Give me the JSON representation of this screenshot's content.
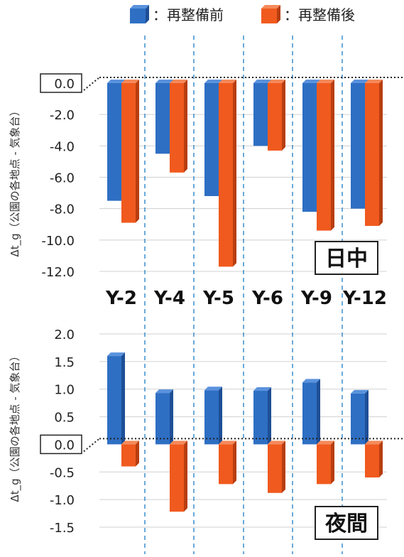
{
  "legend": {
    "before": {
      "label": "：再整備前",
      "color": "#2E6FC4",
      "dark": "#1E4F96",
      "light": "#5A92DD"
    },
    "after": {
      "label": "：再整備後",
      "color": "#F05A1E",
      "dark": "#B83E10",
      "light": "#F58A5A"
    }
  },
  "categories": [
    "Y-2",
    "Y-4",
    "Y-5",
    "Y-6",
    "Y-9",
    "Y-12"
  ],
  "y_axis_title_top": "Δt_g（公園の各地点 - 気象台）",
  "y_axis_title_bottom": "Δt_g（公園の各地点 - 気象台）",
  "chart_data": [
    {
      "type": "bar",
      "title": "日中",
      "categories": [
        "Y-2",
        "Y-4",
        "Y-5",
        "Y-6",
        "Y-9",
        "Y-12"
      ],
      "series": [
        {
          "name": "再整備前",
          "values": [
            -7.5,
            -4.5,
            -7.2,
            -4.0,
            -8.2,
            -8.0
          ]
        },
        {
          "name": "再整備後",
          "values": [
            -8.9,
            -5.7,
            -11.7,
            -4.3,
            -9.4,
            -9.1
          ]
        }
      ],
      "ylim": [
        -12.0,
        0.0
      ],
      "yticks": [
        "0.0",
        "-2.0",
        "-4.0",
        "-6.0",
        "-8.0",
        "-10.0",
        "-12.0"
      ],
      "ylabel": "Δt_g（公園の各地点 - 気象台）",
      "grid": true
    },
    {
      "type": "bar",
      "title": "夜間",
      "categories": [
        "Y-2",
        "Y-4",
        "Y-5",
        "Y-6",
        "Y-9",
        "Y-12"
      ],
      "series": [
        {
          "name": "再整備前",
          "values": [
            1.6,
            0.93,
            0.98,
            0.97,
            1.12,
            0.92
          ]
        },
        {
          "name": "再整備後",
          "values": [
            -0.4,
            -1.22,
            -0.72,
            -0.88,
            -0.72,
            -0.6
          ]
        }
      ],
      "ylim": [
        -1.5,
        2.0
      ],
      "yticks": [
        "2.0",
        "1.5",
        "1.0",
        "0.5",
        "0.0",
        "-0.5",
        "-1.0",
        "-1.5"
      ],
      "ylabel": "Δt_g（公園の各地点 - 気象台）",
      "grid": true
    }
  ]
}
